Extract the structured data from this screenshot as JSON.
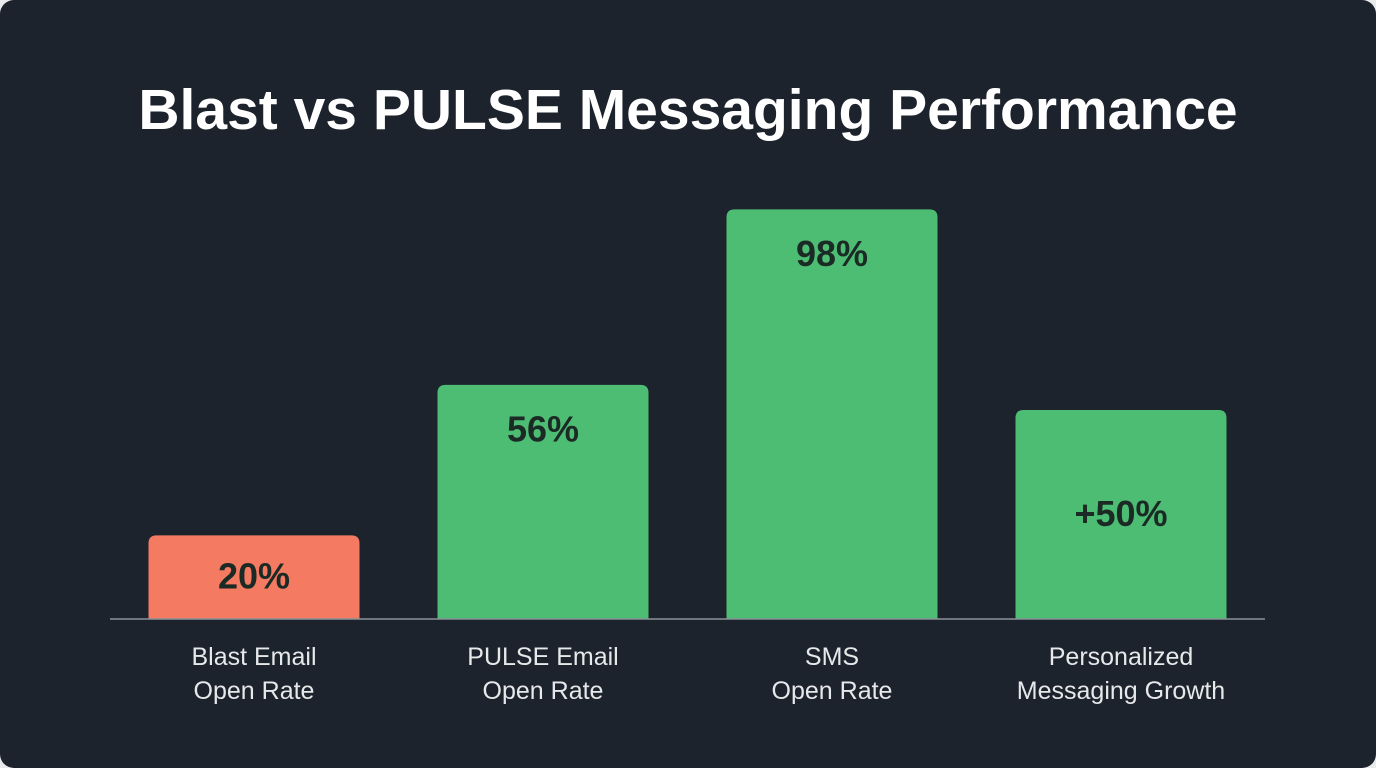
{
  "chart_data": {
    "type": "bar",
    "title": "Blast vs PULSE Messaging Performance",
    "categories": [
      "Blast Email\nOpen Rate",
      "PULSE Email\nOpen Rate",
      "SMS\nOpen Rate",
      "Personalized\nMessaging Growth"
    ],
    "values": [
      20,
      56,
      98,
      50
    ],
    "value_labels": [
      "20%",
      "56%",
      "98%",
      "+50%"
    ],
    "colors": [
      "#f47a62",
      "#4dbd74",
      "#4dbd74",
      "#4dbd74"
    ],
    "ylim": [
      0,
      100
    ]
  }
}
